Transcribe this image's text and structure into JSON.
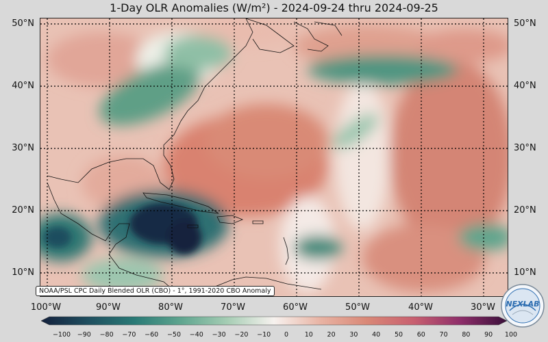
{
  "title": "1-Day OLR Anomalies (W/m²) - 2024-09-24 thru 2024-09-25",
  "map": {
    "lat_labels": [
      "50°N",
      "40°N",
      "30°N",
      "20°N",
      "10°N"
    ],
    "lon_labels": [
      "100°W",
      "90°W",
      "80°W",
      "70°W",
      "60°W",
      "50°W",
      "40°W",
      "30°W"
    ],
    "lat_values": [
      50,
      40,
      30,
      20,
      10
    ],
    "lon_values": [
      -100,
      -90,
      -80,
      -70,
      -60,
      -50,
      -40,
      -30
    ]
  },
  "credit": "NOAA/PSL CPC Daily Blended OLR (CBO) - 1°, 1991-2020 CBO Anomaly",
  "colorbar": {
    "ticks": [
      "−100",
      "−90",
      "−80",
      "−70",
      "−60",
      "−50",
      "−40",
      "−30",
      "−20",
      "−10",
      "0",
      "10",
      "20",
      "30",
      "40",
      "50",
      "60",
      "70",
      "80",
      "90",
      "100"
    ],
    "range": [
      -100,
      100
    ],
    "colors": [
      "#14213d",
      "#1f4e5f",
      "#2a7a76",
      "#5fa58f",
      "#a6cdb4",
      "#f7f2ef",
      "#e8b3a3",
      "#d98877",
      "#c86070",
      "#8e2e6a",
      "#3a0f3a"
    ]
  },
  "logo": {
    "text": "NEXLAB",
    "accent": "#2b6cb0"
  }
}
